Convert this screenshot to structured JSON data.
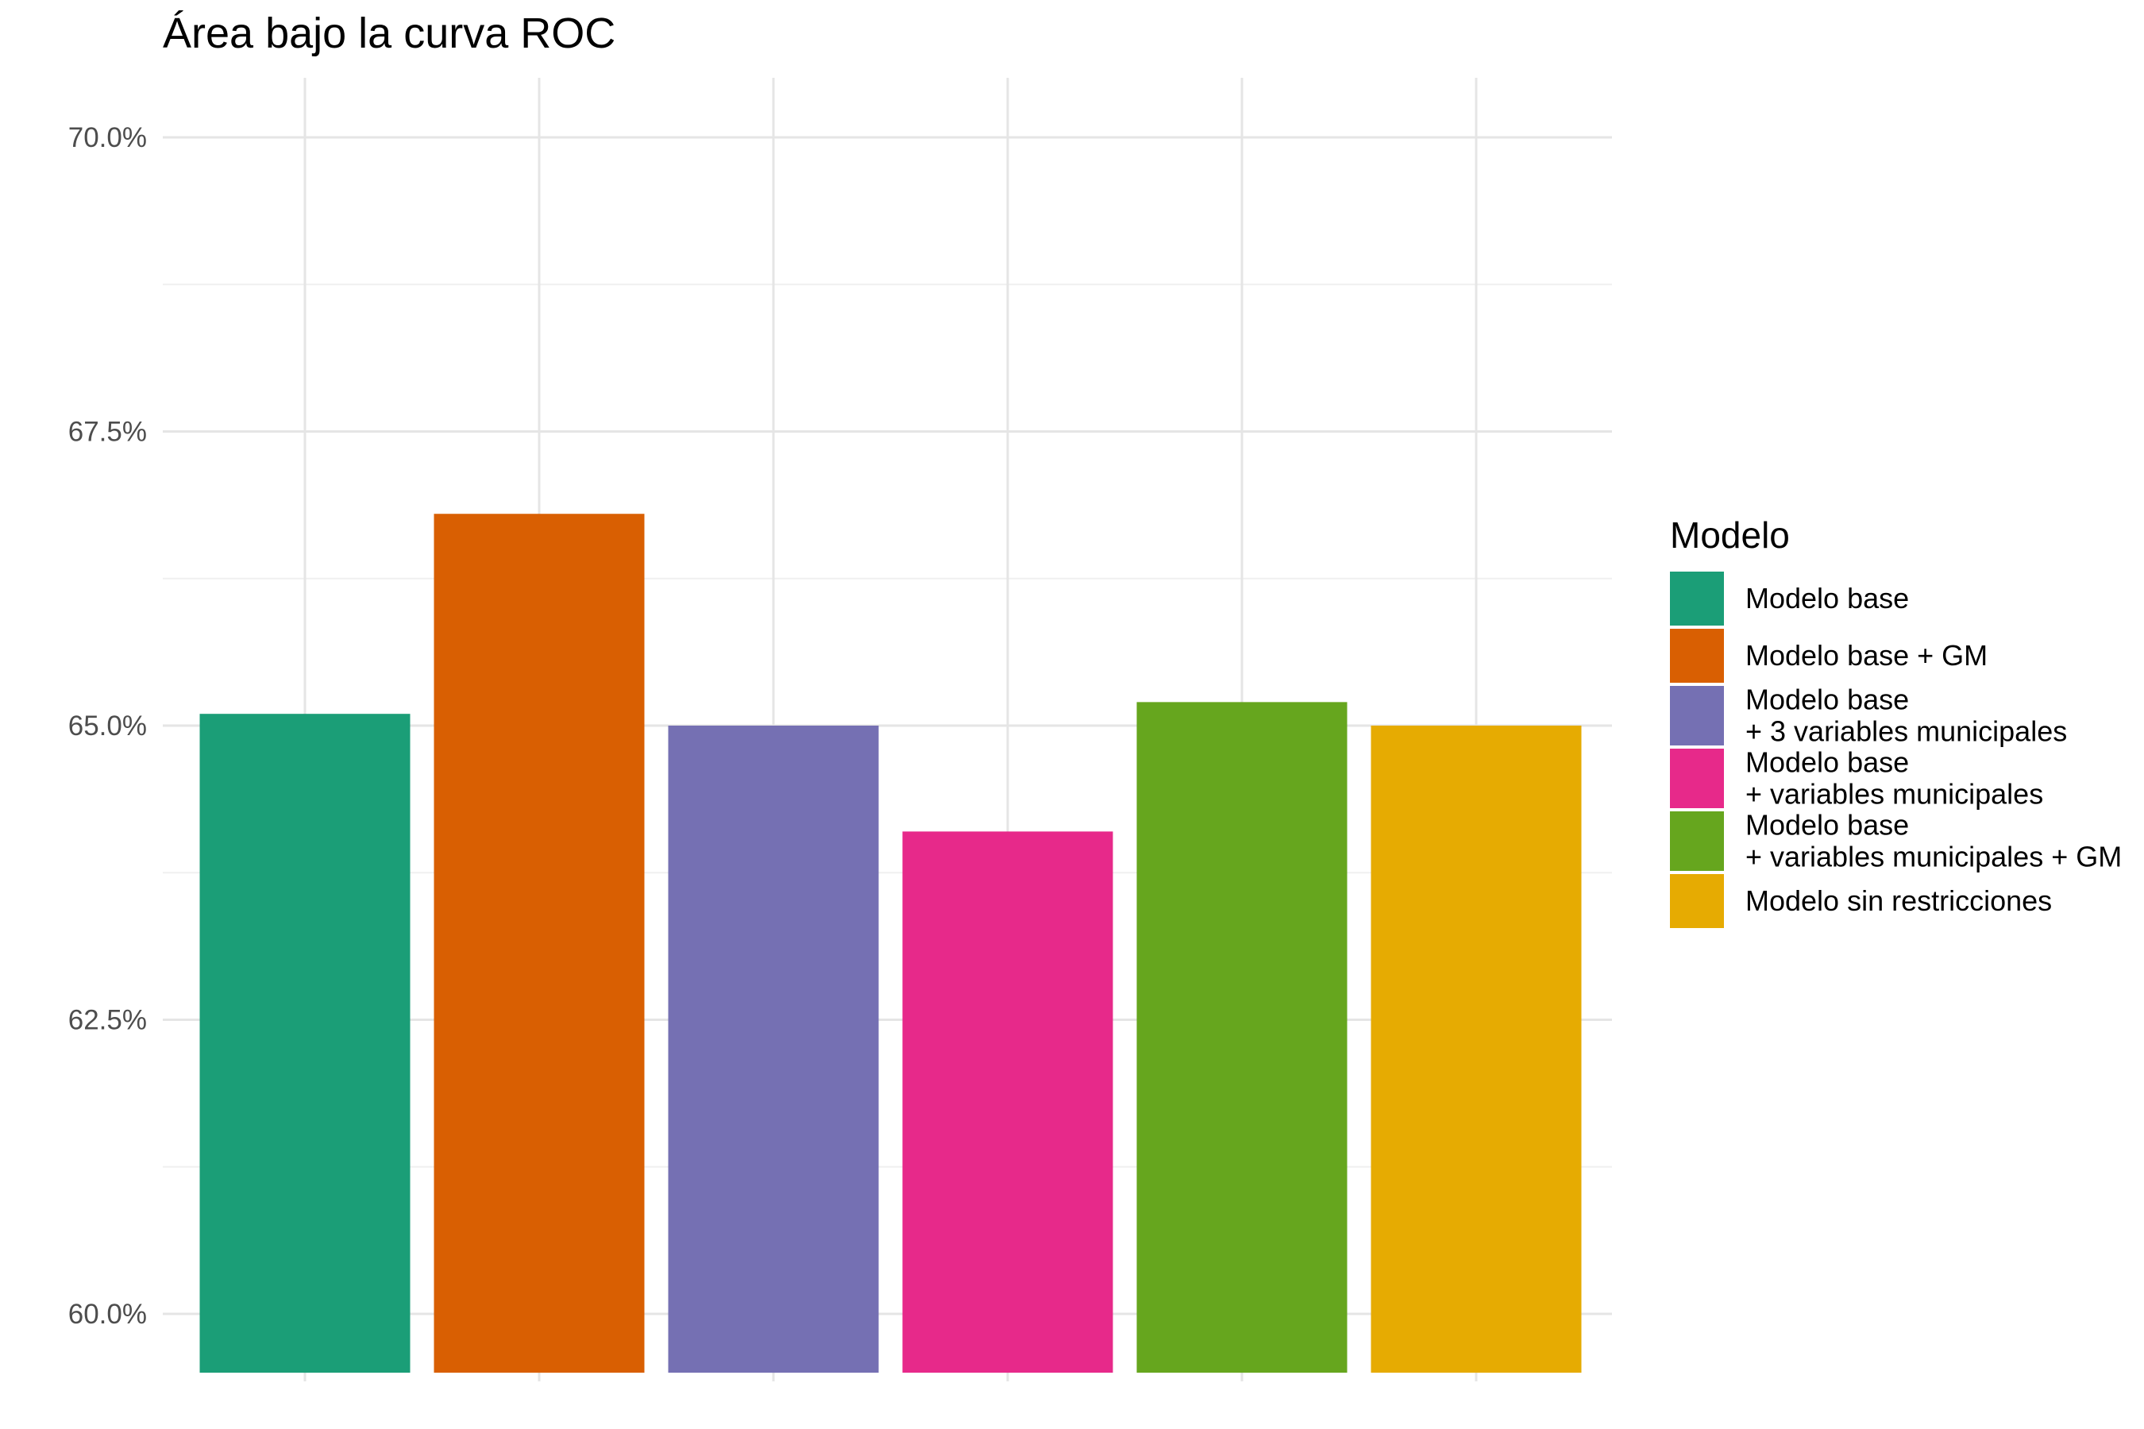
{
  "chart_data": {
    "type": "bar",
    "title": "Área bajo la curva ROC",
    "xlabel": "",
    "ylabel": "",
    "ylim": [
      59.5,
      70.5
    ],
    "yticks": [
      "60.0%",
      "62.5%",
      "65.0%",
      "67.5%",
      "70.0%"
    ],
    "ytick_values": [
      60.0,
      62.5,
      65.0,
      67.5,
      70.0
    ],
    "grid": true,
    "legend_title": "Modelo",
    "legend_position": "right",
    "series": [
      {
        "name": "Modelo base",
        "legend_lines": [
          "Modelo base"
        ],
        "value": 65.1,
        "color": "#1B9E77"
      },
      {
        "name": "Modelo base + GM",
        "legend_lines": [
          "Modelo base + GM"
        ],
        "value": 66.8,
        "color": "#D95F02"
      },
      {
        "name": "Modelo base + 3 variables municipales",
        "legend_lines": [
          "Modelo base",
          "+ 3 variables municipales"
        ],
        "value": 65.0,
        "color": "#7570B3"
      },
      {
        "name": "Modelo base + variables municipales",
        "legend_lines": [
          "Modelo base",
          "+ variables municipales"
        ],
        "value": 64.1,
        "color": "#E7298A"
      },
      {
        "name": "Modelo base + variables municipales + GM",
        "legend_lines": [
          "Modelo base",
          "+ variables municipales + GM"
        ],
        "value": 65.2,
        "color": "#66A61E"
      },
      {
        "name": "Modelo sin restricciones",
        "legend_lines": [
          "Modelo sin restricciones"
        ],
        "value": 65.0,
        "color": "#E6AB02"
      }
    ]
  }
}
